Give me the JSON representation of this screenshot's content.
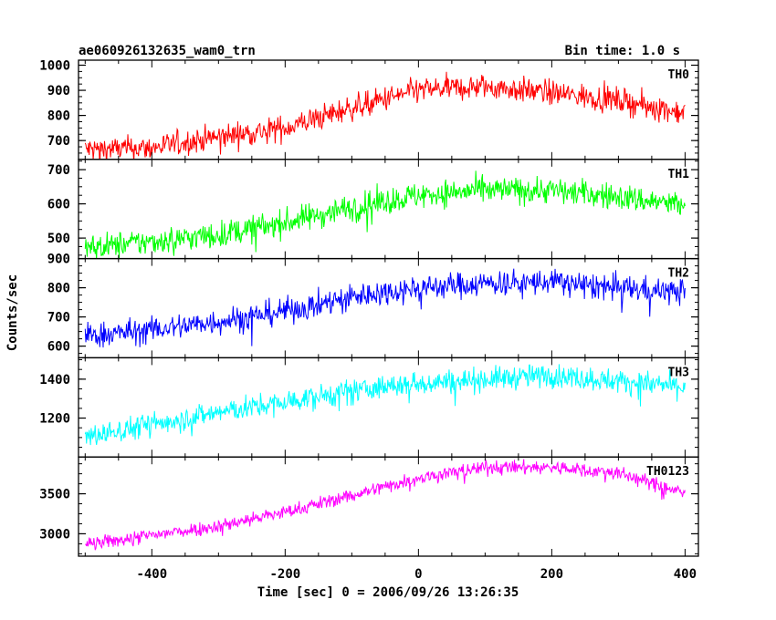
{
  "title_left": "ae060926132635_wam0_trn",
  "title_right": "Bin time: 1.0 s",
  "chart_data": {
    "type": "line",
    "xlabel": "Time [sec] 0 = 2006/09/26 13:26:35",
    "ylabel": "Counts/sec",
    "xlim": [
      -510,
      420
    ],
    "xticks": [
      -400,
      -200,
      0,
      200,
      400
    ],
    "x_range": [
      -500,
      400
    ],
    "bin_time_s": 1.0,
    "panels": [
      {
        "name": "TH0",
        "color": "#ff0000",
        "ylim": [
          625,
          1020
        ],
        "yticks": [
          700,
          800,
          900,
          1000
        ],
        "trend": [
          [
            -500,
            665
          ],
          [
            -400,
            670
          ],
          [
            -300,
            715
          ],
          [
            -200,
            750
          ],
          [
            -100,
            830
          ],
          [
            0,
            900
          ],
          [
            100,
            915
          ],
          [
            200,
            890
          ],
          [
            300,
            860
          ],
          [
            400,
            810
          ]
        ],
        "noise": 45
      },
      {
        "name": "TH1",
        "color": "#00ff00",
        "ylim": [
          440,
          730
        ],
        "yticks": [
          500,
          600,
          700
        ],
        "trend": [
          [
            -500,
            470
          ],
          [
            -400,
            490
          ],
          [
            -300,
            510
          ],
          [
            -200,
            545
          ],
          [
            -100,
            590
          ],
          [
            0,
            625
          ],
          [
            100,
            640
          ],
          [
            200,
            640
          ],
          [
            300,
            620
          ],
          [
            400,
            595
          ]
        ],
        "noise": 35
      },
      {
        "name": "TH2",
        "color": "#0000ff",
        "ylim": [
          560,
          900
        ],
        "yticks": [
          600,
          700,
          800,
          900
        ],
        "trend": [
          [
            -500,
            635
          ],
          [
            -400,
            655
          ],
          [
            -300,
            685
          ],
          [
            -200,
            720
          ],
          [
            -100,
            770
          ],
          [
            0,
            800
          ],
          [
            100,
            815
          ],
          [
            200,
            820
          ],
          [
            300,
            800
          ],
          [
            400,
            785
          ]
        ],
        "noise": 40
      },
      {
        "name": "TH3",
        "color": "#00ffff",
        "ylim": [
          1000,
          1510
        ],
        "yticks": [
          1200,
          1400
        ],
        "trend": [
          [
            -500,
            1100
          ],
          [
            -400,
            1170
          ],
          [
            -300,
            1230
          ],
          [
            -200,
            1280
          ],
          [
            -100,
            1340
          ],
          [
            0,
            1380
          ],
          [
            100,
            1400
          ],
          [
            200,
            1420
          ],
          [
            300,
            1390
          ],
          [
            400,
            1360
          ]
        ],
        "noise": 55
      },
      {
        "name": "TH0123",
        "color": "#ff00ff",
        "ylim": [
          2720,
          3960
        ],
        "yticks": [
          3000,
          3500
        ],
        "trend": [
          [
            -500,
            2860
          ],
          [
            -400,
            2980
          ],
          [
            -300,
            3100
          ],
          [
            -200,
            3270
          ],
          [
            -100,
            3480
          ],
          [
            0,
            3700
          ],
          [
            100,
            3830
          ],
          [
            200,
            3830
          ],
          [
            300,
            3760
          ],
          [
            400,
            3500
          ]
        ],
        "noise": 80
      }
    ]
  }
}
